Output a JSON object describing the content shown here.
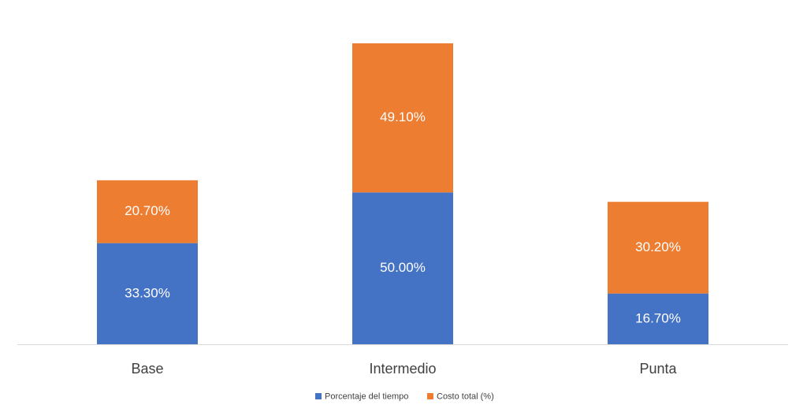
{
  "chart_data": {
    "type": "stacked-bar",
    "categories": [
      "Base",
      "Intermedio",
      "Punta"
    ],
    "series": [
      {
        "name": "Porcentaje del tiempo",
        "color": "#4472c4",
        "values": [
          33.3,
          50.0,
          16.7
        ],
        "value_labels": [
          "33.30%",
          "50.00%",
          "16.70%"
        ]
      },
      {
        "name": "Costo total (%)",
        "color": "#ed7d31",
        "values": [
          20.7,
          49.1,
          30.2
        ],
        "value_labels": [
          "20.70%",
          "49.10%",
          "30.20%"
        ]
      }
    ]
  }
}
